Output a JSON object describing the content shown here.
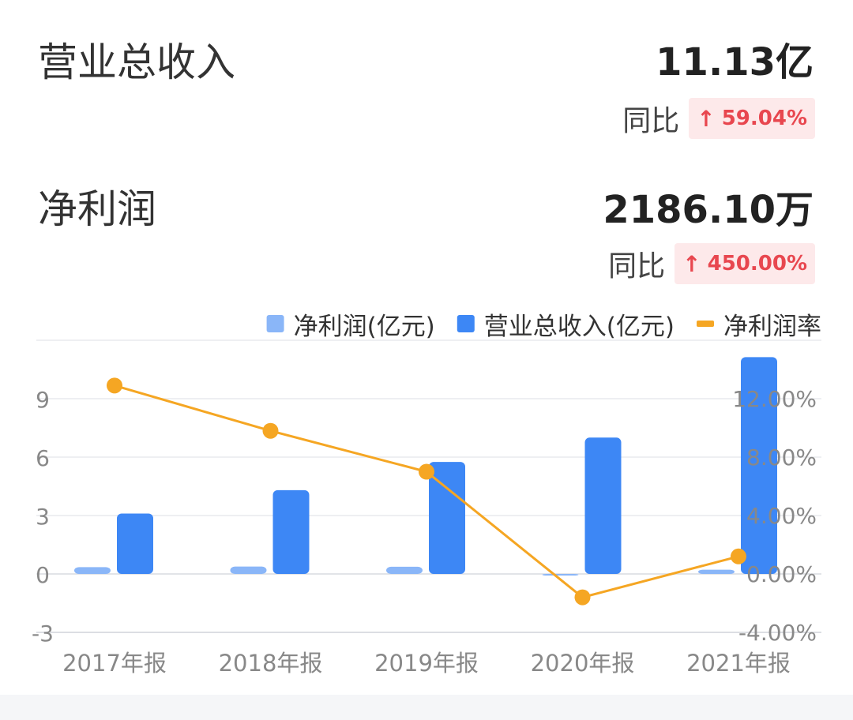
{
  "metrics": [
    {
      "label": "营业总收入",
      "value": "11.13亿",
      "yoy_label": "同比",
      "yoy_value": "59.04%",
      "yoy_direction": "up"
    },
    {
      "label": "净利润",
      "value": "2186.10万",
      "yoy_label": "同比",
      "yoy_value": "450.00%",
      "yoy_direction": "up"
    }
  ],
  "colors": {
    "net_profit_bar": "#8ab6f8",
    "revenue_bar": "#3d87f5",
    "margin_line": "#f5a623",
    "yoy_up": "#e8474f",
    "yoy_badge_bg": "#fde9ea"
  },
  "chart_data": {
    "type": "bar",
    "categories": [
      "2017年报",
      "2018年报",
      "2019年报",
      "2020年报",
      "2021年报"
    ],
    "series": [
      {
        "name": "净利润(亿元)",
        "type": "bar",
        "axis": "left",
        "color": "#8ab6f8",
        "values": [
          0.35,
          0.38,
          0.37,
          -0.05,
          0.22
        ]
      },
      {
        "name": "营业总收入(亿元)",
        "type": "bar",
        "axis": "left",
        "color": "#3d87f5",
        "values": [
          3.1,
          4.3,
          5.75,
          7.0,
          11.13
        ]
      },
      {
        "name": "净利润率",
        "type": "line",
        "axis": "right",
        "color": "#f5a623",
        "values": [
          12.9,
          9.8,
          7.0,
          -1.6,
          1.2
        ]
      }
    ],
    "y_left": {
      "ticks": [
        9,
        6,
        3,
        0,
        -3
      ],
      "range": [
        -3,
        12
      ]
    },
    "y_right": {
      "ticks": [
        "12.00%",
        "8.00%",
        "4.00%",
        "0.00%",
        "-4.00%"
      ],
      "range": [
        -4,
        16
      ]
    },
    "legend_position": "top-right",
    "grid": true
  }
}
